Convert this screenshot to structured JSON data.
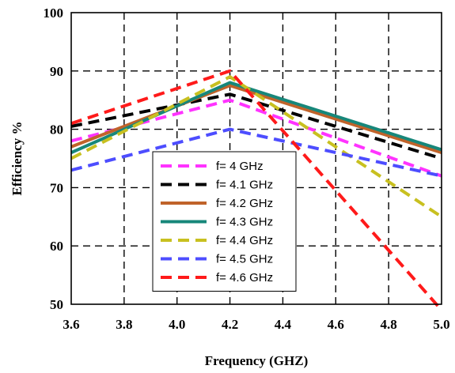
{
  "chart_data": {
    "type": "line",
    "title": "",
    "xlabel": "Frequency (GHZ)",
    "ylabel": "Efficiency %",
    "xlim": [
      3.6,
      5.0
    ],
    "ylim": [
      50,
      100
    ],
    "xticks": [
      3.6,
      3.8,
      4.0,
      4.2,
      4.4,
      4.6,
      4.8,
      5.0
    ],
    "xtick_labels": [
      "3.6",
      "3.8",
      "4.0",
      "4.2",
      "4.4",
      "4.6",
      "4.8",
      "5.0"
    ],
    "yticks": [
      50,
      60,
      70,
      80,
      90,
      100
    ],
    "ytick_labels": [
      "50",
      "60",
      "70",
      "80",
      "90",
      "100"
    ],
    "grid": true,
    "legend_position": "lower-center",
    "series": [
      {
        "name": "f= 4 GHz",
        "color": "#ff33ff",
        "dash": "dashed",
        "x": [
          3.6,
          4.2,
          5.0
        ],
        "y": [
          78,
          85,
          72
        ]
      },
      {
        "name": "f= 4.1 GHz",
        "color": "#000000",
        "dash": "dashed",
        "x": [
          3.6,
          4.2,
          5.0
        ],
        "y": [
          80.5,
          86,
          75
        ]
      },
      {
        "name": "f= 4.2 GHz",
        "color": "#c0632a",
        "dash": "solid",
        "x": [
          3.6,
          4.2,
          5.0
        ],
        "y": [
          77,
          87.5,
          76
        ]
      },
      {
        "name": "f= 4.3 GHz",
        "color": "#17877a",
        "dash": "solid",
        "x": [
          3.6,
          4.2,
          5.0
        ],
        "y": [
          76,
          88,
          76.5
        ]
      },
      {
        "name": "f= 4.4 GHz",
        "color": "#c8c020",
        "dash": "dashed",
        "x": [
          3.6,
          4.2,
          5.0
        ],
        "y": [
          75,
          89,
          65
        ]
      },
      {
        "name": "f= 4.5 GHz",
        "color": "#4d4dff",
        "dash": "dashed",
        "x": [
          3.6,
          4.2,
          5.0
        ],
        "y": [
          73,
          80,
          72
        ]
      },
      {
        "name": "f= 4.6 GHz",
        "color": "#ff1a1a",
        "dash": "dashed",
        "x": [
          3.6,
          4.2,
          5.0
        ],
        "y": [
          81,
          90,
          49
        ]
      }
    ]
  }
}
